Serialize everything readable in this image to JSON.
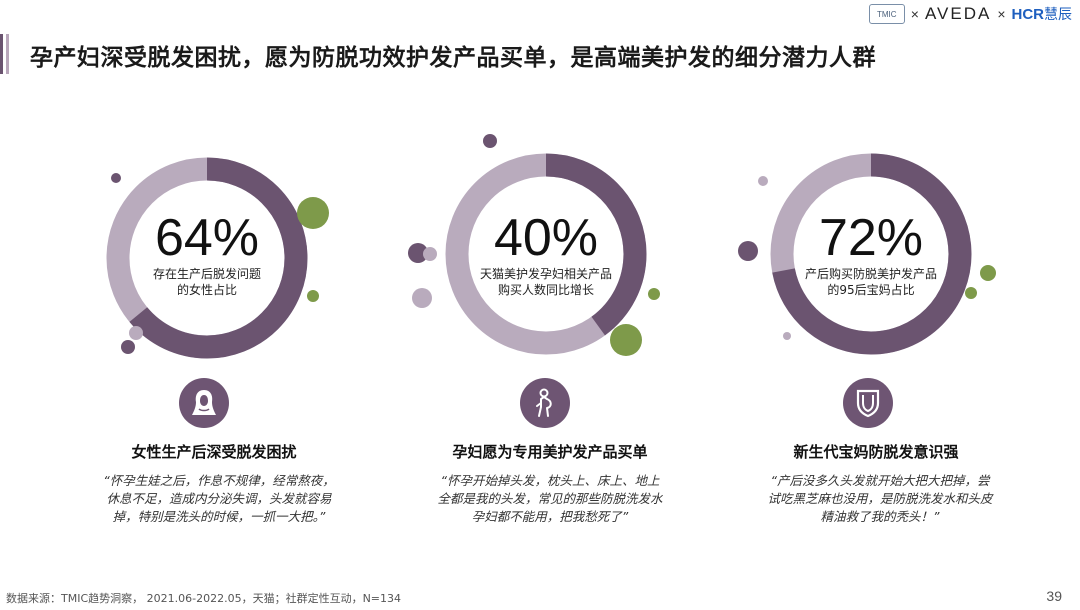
{
  "header": {
    "logo_tmic": "TMIC",
    "logo_x1": "×",
    "logo_aveda": "AVEDA",
    "logo_x2": "×",
    "logo_hcr": "HCR",
    "logo_hcr_zh": "慧辰"
  },
  "title": "孕产妇深受脱发困扰，愿为防脱功效护发产品买单，是高端美护发的细分潜力人群",
  "colors": {
    "ring_dark": "#6b5470",
    "ring_light": "#b9abbd",
    "accent_green": "#7e9a4a",
    "icon_bg": "#6e5573"
  },
  "chart_data": [
    {
      "type": "pie",
      "values": [
        64,
        36
      ],
      "value_label": "64%",
      "label": "存在生产后脱发问题的女性占比",
      "label_lines": [
        "存在生产后脱发问题",
        "的女性占比"
      ]
    },
    {
      "type": "pie",
      "values": [
        40,
        60
      ],
      "value_label": "40%",
      "label": "天猫美护发孕妇相关产品购买人数同比增长",
      "label_lines": [
        "天猫美护发孕妇相关产品",
        "购买人数同比增长"
      ]
    },
    {
      "type": "pie",
      "values": [
        72,
        28
      ],
      "value_label": "72%",
      "label": "产后购买防脱美护发产品的95后宝妈占比",
      "label_lines": [
        "产后购买防脱美护发产品",
        "的95后宝妈占比"
      ]
    }
  ],
  "sections": [
    {
      "icon": "woman-hair-icon",
      "heading": "女性生产后深受脱发困扰",
      "quote_lines": [
        "“怀孕生娃之后，作息不规律，经常熬夜，",
        "休息不足，造成内分泌失调，头发就容易",
        "掉，特别是洗头的时候，一抓一大把。”"
      ]
    },
    {
      "icon": "pregnant-woman-icon",
      "heading": "孕妇愿为专用美护发产品买单",
      "quote_lines": [
        "“怀孕开始掉头发，枕头上、床上、地上",
        "全都是我的头发，常见的那些防脱洗发水",
        "孕妇都不能用，把我愁死了”"
      ]
    },
    {
      "icon": "shield-icon",
      "heading": "新生代宝妈防脱发意识强",
      "quote_lines": [
        "“产后没多久头发就开始大把大把掉，尝",
        "试吃黑芝麻也没用，是防脱洗发水和头皮",
        "精油救了我的秃头！”"
      ]
    }
  ],
  "footer": {
    "source": "数据来源：TMIC趋势洞察，  2021.06-2022.05，天猫；社群定性互动，N=134",
    "page_number": "39"
  }
}
